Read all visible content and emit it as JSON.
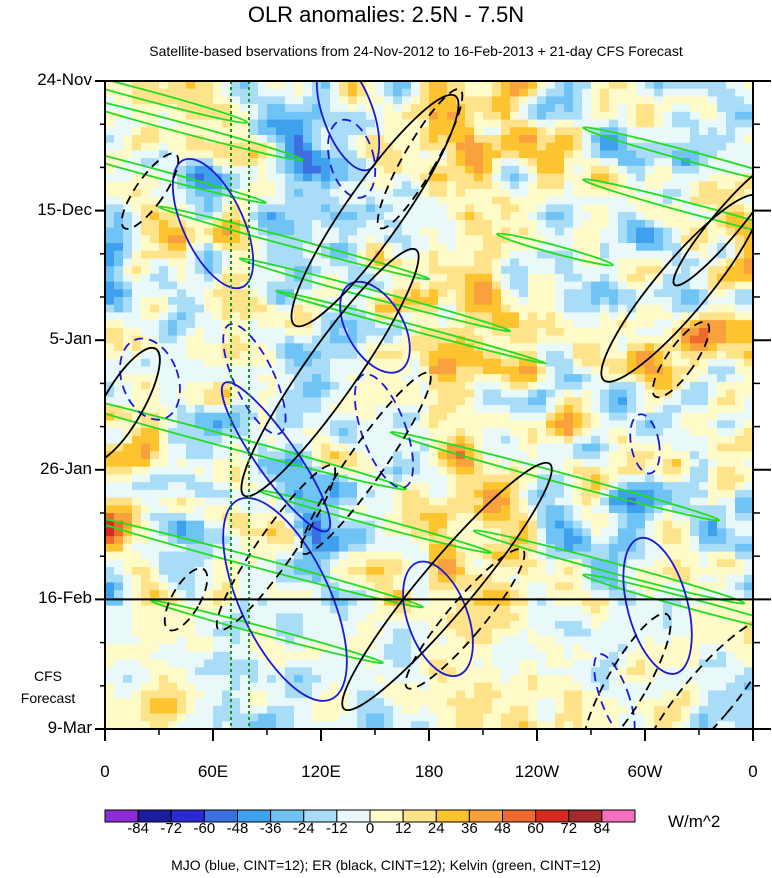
{
  "chart_data": {
    "type": "heatmap",
    "title": "OLR anomalies: 2.5N - 7.5N",
    "subtitle": "Satellite-based bservations from 24-Nov-2012 to 16-Feb-2013 + 21-day CFS Forecast",
    "x_axis": {
      "ticks": [
        "0",
        "60E",
        "120E",
        "180",
        "120W",
        "60W",
        "0"
      ],
      "tick_values_deg_east": [
        0,
        60,
        120,
        180,
        240,
        300,
        360
      ],
      "range_deg_east": [
        0,
        360
      ]
    },
    "y_axis": {
      "ticks": [
        "24-Nov",
        "15-Dec",
        "5-Jan",
        "26-Jan",
        "16-Feb",
        "9-Mar"
      ],
      "range": [
        "2012-11-24",
        "2013-03-09"
      ],
      "direction": "time increases downward"
    },
    "observation_end": "16-Feb",
    "forecast_label": [
      "CFS",
      "Forecast"
    ],
    "colorbar": {
      "levels": [
        "-84",
        "-72",
        "-60",
        "-48",
        "-36",
        "-24",
        "-12",
        "0",
        "12",
        "24",
        "36",
        "48",
        "60",
        "72",
        "84"
      ],
      "colors": [
        "#8e2bd9",
        "#1c1c9c",
        "#2a2ad6",
        "#3c6fe0",
        "#3fa0ee",
        "#6fc4f5",
        "#a9dcf7",
        "#e9f8f8",
        "#fffbc8",
        "#ffe38a",
        "#fdc42f",
        "#f9a13c",
        "#ee6a2c",
        "#d62a1e",
        "#a52a2a",
        "#f76fbf"
      ],
      "units": "W/m^2"
    },
    "overlays": [
      {
        "name": "MJO",
        "color": "#1a1ad6",
        "cint": 12,
        "style": "closed contours (solid positive, dashed negative)"
      },
      {
        "name": "ER",
        "color": "#000000",
        "cint": 12,
        "style": "closed contours (solid positive, dashed negative)"
      },
      {
        "name": "Kelvin",
        "color": "#22dd22",
        "cint": 12,
        "style": "eastward-tilted contours"
      }
    ],
    "reference_lines_deg_east": [
      70,
      80
    ],
    "footnote": "MJO (blue, CINT=12); ER (black, CINT=12); Kelvin (green, CINT=12)"
  }
}
